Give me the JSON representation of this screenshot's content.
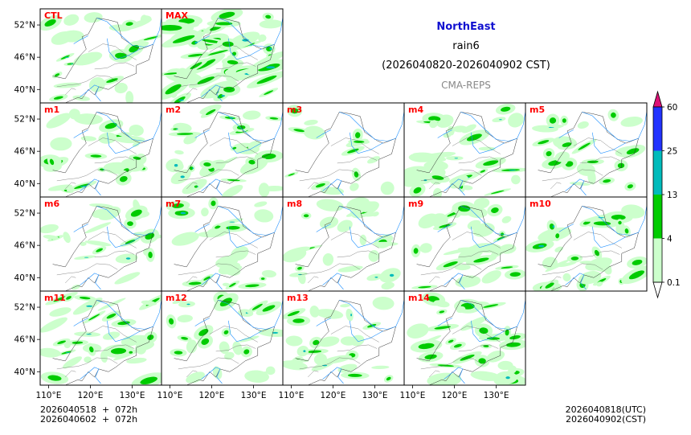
{
  "header": {
    "region": "NorthEast",
    "variable": "rain6",
    "period": "(2026040820-2026040902 CST)",
    "model": "CMA-REPS"
  },
  "footer": {
    "left_line1": "2026040518  +  072h",
    "left_line2": "2026040602  +  072h",
    "right_line1": "2026040818(UTC)",
    "right_line2": "2026040902(CST)"
  },
  "colors": {
    "title": "#1010d0",
    "panel_label": "#ff0000",
    "map_border": "#000000",
    "river": "#1e90ff"
  },
  "chart_data": {
    "type": "heatmap",
    "title": "NorthEast rain6 (2026040820-2026040902 CST)",
    "subtitle": "CMA-REPS",
    "x_ticks": [
      "110°E",
      "120°E",
      "130°E"
    ],
    "x_tick_values": [
      110,
      120,
      130
    ],
    "y_ticks": [
      "52°N",
      "46°N",
      "40°N"
    ],
    "y_tick_values": [
      52,
      46,
      40
    ],
    "xlim": [
      108,
      137
    ],
    "ylim": [
      37.5,
      55
    ],
    "colorbar": {
      "levels": [
        "0.1",
        "4",
        "13",
        "25",
        "60"
      ],
      "level_values": [
        0.1,
        4,
        13,
        25,
        60
      ],
      "colors": [
        "#ccffcc",
        "#00cc00",
        "#00bbbb",
        "#2233ff",
        "#dd1177"
      ],
      "extend": "both"
    },
    "panels": [
      {
        "name": "CTL",
        "intensity": 0.35,
        "seed": 3
      },
      {
        "name": "MAX",
        "intensity": 1.0,
        "seed": 7
      },
      {
        "name": "m1",
        "intensity": 0.45,
        "seed": 11
      },
      {
        "name": "m2",
        "intensity": 0.5,
        "seed": 13
      },
      {
        "name": "m3",
        "intensity": 0.12,
        "seed": 17
      },
      {
        "name": "m4",
        "intensity": 0.6,
        "seed": 19
      },
      {
        "name": "m5",
        "intensity": 0.3,
        "seed": 23
      },
      {
        "name": "m6",
        "intensity": 0.3,
        "seed": 29
      },
      {
        "name": "m7",
        "intensity": 0.3,
        "seed": 31
      },
      {
        "name": "m8",
        "intensity": 0.35,
        "seed": 37
      },
      {
        "name": "m9",
        "intensity": 0.45,
        "seed": 41
      },
      {
        "name": "m10",
        "intensity": 0.5,
        "seed": 43
      },
      {
        "name": "m11",
        "intensity": 0.55,
        "seed": 47
      },
      {
        "name": "m12",
        "intensity": 0.35,
        "seed": 53
      },
      {
        "name": "m13",
        "intensity": 0.35,
        "seed": 59
      },
      {
        "name": "m14",
        "intensity": 0.5,
        "seed": 61
      }
    ]
  }
}
